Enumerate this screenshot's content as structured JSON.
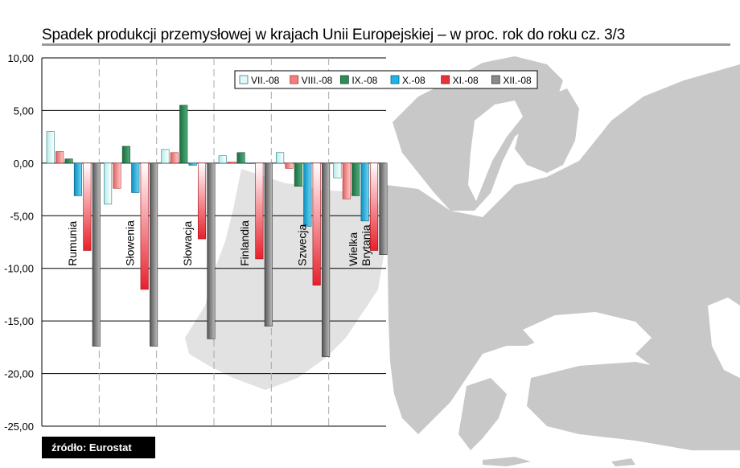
{
  "header": {
    "title": "Spadek produkcji przemysłowej w krajach Unii Europejskiej – w proc. rok  do roku cz. 3/3"
  },
  "source": {
    "label": "źródło: Eurostat"
  },
  "colors": {
    "map_land": "#c8c8c8",
    "map_eu_highlight": "#e2e2e2",
    "title_rule": "#9a9a9a",
    "source_bg": "#000000",
    "gridline": "#000000",
    "separator": "#aaaaaa"
  },
  "chart_data": {
    "type": "bar",
    "title": "",
    "xlabel": "",
    "ylabel": "",
    "ylim": [
      -25,
      10
    ],
    "yticks": [
      "10,00",
      "5,00",
      "0,00",
      "-5,00",
      "-10,00",
      "-15,00",
      "-20,00",
      "-25,00"
    ],
    "ytick_values": [
      10,
      5,
      0,
      -5,
      -10,
      -15,
      -20,
      -25
    ],
    "grid": true,
    "legend_position": "top",
    "categories": [
      {
        "lines": [
          "Rumunia"
        ]
      },
      {
        "lines": [
          "Słowenia"
        ]
      },
      {
        "lines": [
          "Słowacja"
        ]
      },
      {
        "lines": [
          "Finlandia"
        ]
      },
      {
        "lines": [
          "Szwecja"
        ]
      },
      {
        "lines": [
          "Wielka",
          "Brytania"
        ]
      }
    ],
    "series": [
      {
        "name": "VII.-08",
        "color": "#e6f7f7",
        "values": [
          3.0,
          -3.9,
          1.3,
          0.7,
          1.0,
          -1.4
        ]
      },
      {
        "name": "VIII.-08",
        "color": "#f08080",
        "values": [
          1.1,
          -2.4,
          1.0,
          0.1,
          -0.5,
          -3.4
        ]
      },
      {
        "name": "IX.-08",
        "color": "#2e8b57",
        "values": [
          0.4,
          1.6,
          5.5,
          1.0,
          -2.2,
          -3.1
        ]
      },
      {
        "name": "X.-08",
        "color": "#1eb4e6",
        "values": [
          -3.1,
          -2.8,
          -0.2,
          0.0,
          -6.0,
          -5.5
        ]
      },
      {
        "name": "XI.-08",
        "color": "#e8303a",
        "values": [
          -8.3,
          -12.0,
          -7.2,
          -9.1,
          -11.6,
          -8.3
        ]
      },
      {
        "name": "XII.-08",
        "color": "#8a8a8a",
        "values": [
          -17.4,
          -17.4,
          -16.7,
          -15.5,
          -18.4,
          -8.7
        ]
      }
    ]
  }
}
